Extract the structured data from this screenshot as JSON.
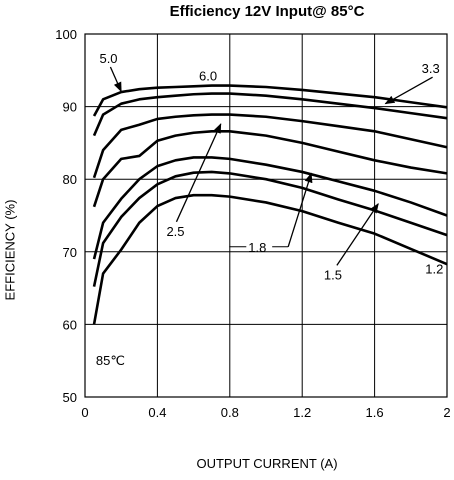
{
  "chart_data": {
    "type": "line",
    "title": "Efficiency 12V Input@ 85°C",
    "xlabel": "OUTPUT CURRENT (A)",
    "ylabel": "EFFICIENCY (%)",
    "xlim": [
      0,
      2
    ],
    "ylim": [
      50,
      100
    ],
    "xticks": [
      "0",
      "0.4",
      "0.8",
      "1.2",
      "1.6",
      "2"
    ],
    "yticks": [
      "50",
      "60",
      "70",
      "80",
      "90",
      "100"
    ],
    "grid": true,
    "annotations": [
      {
        "text": "85℃"
      }
    ],
    "series": [
      {
        "name": "5.0",
        "x": [
          0.05,
          0.1,
          0.2,
          0.3,
          0.4,
          0.5,
          0.6,
          0.7,
          0.8,
          1.0,
          1.2,
          1.4,
          1.6,
          1.8,
          2.0
        ],
        "y": [
          88.7,
          91.0,
          92.0,
          92.4,
          92.6,
          92.7,
          92.8,
          92.9,
          92.9,
          92.7,
          92.3,
          91.8,
          91.3,
          90.6,
          89.9
        ]
      },
      {
        "name": "6.0",
        "x": [
          0.05,
          0.1,
          0.2,
          0.3,
          0.4,
          0.5,
          0.6,
          0.7,
          0.8,
          1.0,
          1.2,
          1.4,
          1.6,
          1.8,
          2.0
        ],
        "y": [
          86.0,
          88.9,
          90.4,
          91.0,
          91.3,
          91.5,
          91.7,
          91.8,
          91.8,
          91.5,
          91.0,
          90.4,
          89.8,
          89.1,
          88.4
        ]
      },
      {
        "name": "3.3",
        "x": [
          0.05,
          0.1,
          0.2,
          0.3,
          0.4,
          0.5,
          0.6,
          0.7,
          0.8,
          1.0,
          1.2,
          1.4,
          1.6,
          1.8,
          2.0
        ],
        "y": [
          80.2,
          84.0,
          86.8,
          87.5,
          88.3,
          88.6,
          88.8,
          88.9,
          88.9,
          88.6,
          88.0,
          87.3,
          86.6,
          85.5,
          84.4
        ]
      },
      {
        "name": "2.5",
        "x": [
          0.05,
          0.1,
          0.2,
          0.3,
          0.4,
          0.5,
          0.6,
          0.7,
          0.8,
          1.0,
          1.2,
          1.4,
          1.6,
          1.8,
          2.0
        ],
        "y": [
          76.2,
          80.0,
          82.8,
          83.2,
          85.3,
          86.0,
          86.4,
          86.6,
          86.6,
          86.0,
          85.0,
          83.8,
          82.6,
          81.6,
          80.8
        ]
      },
      {
        "name": "1.8",
        "x": [
          0.05,
          0.1,
          0.2,
          0.3,
          0.4,
          0.5,
          0.6,
          0.7,
          0.8,
          1.0,
          1.2,
          1.4,
          1.6,
          1.8,
          2.0
        ],
        "y": [
          69.0,
          74.0,
          77.3,
          80.0,
          81.8,
          82.6,
          83.0,
          83.0,
          82.8,
          82.0,
          81.0,
          79.7,
          78.4,
          76.8,
          75.0
        ]
      },
      {
        "name": "1.5",
        "x": [
          0.05,
          0.1,
          0.2,
          0.3,
          0.4,
          0.5,
          0.6,
          0.7,
          0.8,
          1.0,
          1.2,
          1.4,
          1.6,
          1.8,
          2.0
        ],
        "y": [
          65.2,
          71.2,
          74.8,
          77.4,
          79.3,
          80.4,
          80.9,
          81.0,
          80.8,
          80.0,
          78.8,
          77.2,
          75.7,
          74.0,
          72.3
        ]
      },
      {
        "name": "1.2",
        "x": [
          0.05,
          0.1,
          0.2,
          0.3,
          0.4,
          0.5,
          0.6,
          0.7,
          0.8,
          1.0,
          1.2,
          1.4,
          1.6,
          1.8,
          2.0
        ],
        "y": [
          60.0,
          67.0,
          70.3,
          74.0,
          76.3,
          77.4,
          77.8,
          77.8,
          77.6,
          76.8,
          75.6,
          74.0,
          72.5,
          70.4,
          68.3
        ]
      }
    ],
    "labels": [
      {
        "text": "5.0",
        "x": 0.08,
        "y": 96.0,
        "arrow_to": [
          0.2,
          92.1
        ]
      },
      {
        "text": "6.0",
        "x": 0.63,
        "y": 93.6
      },
      {
        "text": "3.3",
        "x": 1.86,
        "y": 94.6,
        "arrow_to": [
          1.66,
          90.4
        ]
      },
      {
        "text": "2.5",
        "x": 0.45,
        "y": 72.2,
        "arrow_to": [
          0.75,
          87.6
        ]
      },
      {
        "text": "1.8",
        "x": 0.88,
        "y": 70.0,
        "arrow_to": [
          1.25,
          80.8
        ]
      },
      {
        "text": "1.5",
        "x": 1.32,
        "y": 66.2,
        "arrow_to": [
          1.62,
          76.6
        ]
      },
      {
        "text": "1.2",
        "x": 1.88,
        "y": 67.0
      }
    ]
  }
}
